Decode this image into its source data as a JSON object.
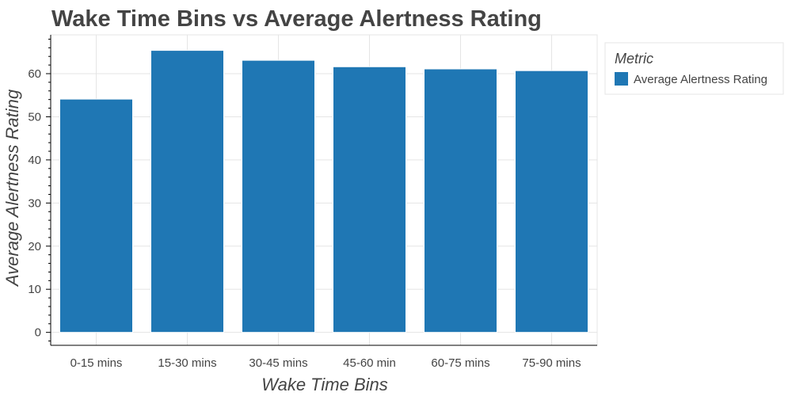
{
  "chart_data": {
    "type": "bar",
    "title": "Wake Time Bins vs Average Alertness Rating",
    "xlabel": "Wake Time Bins",
    "ylabel": "Average Alertness Rating",
    "categories": [
      "0-15 mins",
      "15-30 mins",
      "30-45 mins",
      "45-60 min",
      "60-75 mins",
      "75-90 mins"
    ],
    "series": [
      {
        "name": "Average Alertness Rating",
        "values": [
          54.1,
          65.4,
          63.1,
          61.6,
          61.1,
          60.7
        ],
        "color": "#1f77b4"
      }
    ],
    "ylim": [
      -3,
      69
    ],
    "yticks": [
      0,
      10,
      20,
      30,
      40,
      50,
      60
    ],
    "grid": true,
    "legend": {
      "title": "Metric",
      "placement": "outside-right"
    }
  }
}
